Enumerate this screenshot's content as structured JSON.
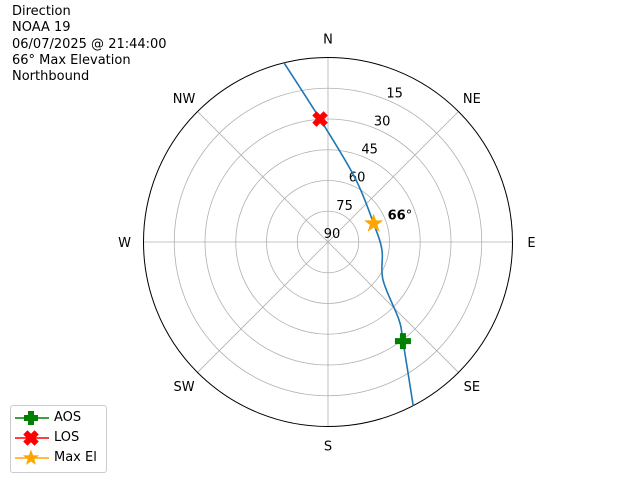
{
  "info_lines": [
    "Direction",
    "NOAA 19",
    "06/07/2025 @ 21:44:00",
    "66° Max Elevation",
    "Northbound"
  ],
  "chart_data": {
    "type": "polar-line",
    "direction_labels": [
      {
        "label": "N",
        "az": 0
      },
      {
        "label": "NE",
        "az": 45
      },
      {
        "label": "E",
        "az": 90
      },
      {
        "label": "SE",
        "az": 135
      },
      {
        "label": "S",
        "az": 180
      },
      {
        "label": "SW",
        "az": 225
      },
      {
        "label": "W",
        "az": 270
      },
      {
        "label": "NW",
        "az": 315
      }
    ],
    "radial_ticks": [
      15,
      30,
      45,
      60,
      75,
      90
    ],
    "radial_range": [
      0,
      90
    ],
    "radial_axis": "elevation (90 at center, 0 at edge)",
    "grid": true,
    "track": {
      "color": "#1f77b4",
      "points": [
        {
          "az": 152.5,
          "el": 0
        },
        {
          "az": 142.9,
          "el": 29.4
        },
        {
          "az": 137.7,
          "el": 38.5
        },
        {
          "az": 124.6,
          "el": 57.4
        },
        {
          "az": 98.4,
          "el": 63.4
        },
        {
          "az": 68,
          "el": 66
        },
        {
          "az": 22.9,
          "el": 56.1
        },
        {
          "az": 356.3,
          "el": 29.9
        },
        {
          "az": 346.2,
          "el": 0
        }
      ]
    },
    "markers": [
      {
        "name": "AOS",
        "az": 142.9,
        "el": 29.4,
        "color": "#008000",
        "shape": "plus"
      },
      {
        "name": "LOS",
        "az": 356.3,
        "el": 29.9,
        "color": "#ff0000",
        "shape": "x"
      },
      {
        "name": "Max El",
        "az": 68,
        "el": 66,
        "color": "#ffa500",
        "shape": "star"
      }
    ],
    "annotation": "66°",
    "legend_position": "lower-left"
  }
}
